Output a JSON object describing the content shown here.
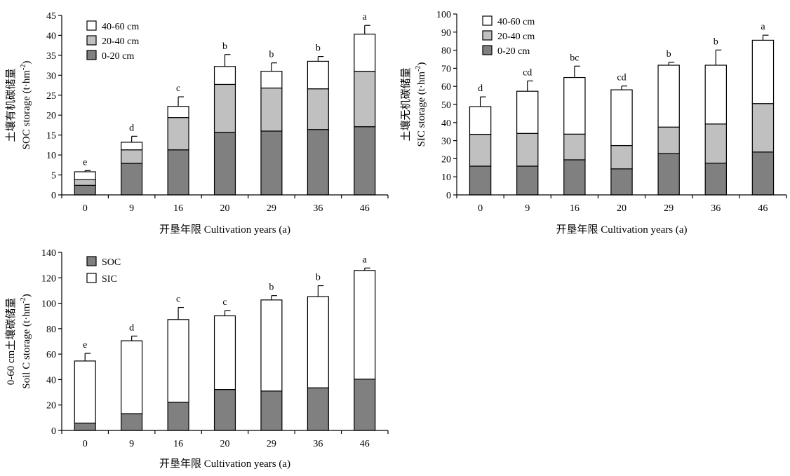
{
  "x_axis_title": "开垦年限 Cultivation years (a)",
  "colors": {
    "layer_0_20": "#808080",
    "layer_20_40": "#c0c0c0",
    "layer_40_60": "#ffffff",
    "soc": "#808080",
    "sic": "#ffffff",
    "stroke": "#000000"
  },
  "chart_data": [
    {
      "type": "bar",
      "stacked": true,
      "categories": [
        "0",
        "9",
        "16",
        "20",
        "29",
        "36",
        "46"
      ],
      "ylabel_cn": "土壤有机碳储量",
      "ylabel_en": "SOC storage (t·hm",
      "ylabel_sup": "-2",
      "ylabel_close": ")",
      "xlabel": "开垦年限 Cultivation years (a)",
      "ylim": [
        0,
        45
      ],
      "yticks": [
        0,
        5,
        10,
        15,
        20,
        25,
        30,
        35,
        40,
        45
      ],
      "series": [
        {
          "name": "0-20 cm",
          "color": "#808080",
          "values": [
            2.4,
            7.9,
            11.3,
            15.7,
            16.0,
            16.4,
            17.1
          ]
        },
        {
          "name": "20-40 cm",
          "color": "#c0c0c0",
          "values": [
            1.4,
            3.4,
            8.1,
            12.0,
            10.8,
            10.2,
            13.9
          ]
        },
        {
          "name": "40-60 cm",
          "color": "#ffffff",
          "values": [
            2.0,
            1.9,
            2.8,
            4.5,
            4.2,
            6.9,
            9.3
          ]
        }
      ],
      "error": [
        0.3,
        1.5,
        2.4,
        3.0,
        2.1,
        1.2,
        2.2
      ],
      "significance": [
        "e",
        "d",
        "c",
        "b",
        "b",
        "b",
        "a"
      ],
      "legend": [
        "40-60 cm",
        "20-40 cm",
        "0-20 cm"
      ],
      "legend_position": "top-left"
    },
    {
      "type": "bar",
      "stacked": true,
      "categories": [
        "0",
        "9",
        "16",
        "20",
        "29",
        "36",
        "46"
      ],
      "ylabel_cn": "土壤无机碳储量",
      "ylabel_en": "SIC storage (t·hm",
      "ylabel_sup": "-2",
      "ylabel_close": ")",
      "xlabel": "开垦年限 Cultivation years (a)",
      "ylim": [
        0,
        100
      ],
      "yticks": [
        0,
        10,
        20,
        30,
        40,
        50,
        60,
        70,
        80,
        90,
        100
      ],
      "series": [
        {
          "name": "0-20 cm",
          "color": "#808080",
          "values": [
            15.9,
            15.9,
            19.4,
            14.4,
            22.9,
            17.5,
            23.7
          ]
        },
        {
          "name": "20-40 cm",
          "color": "#c0c0c0",
          "values": [
            17.6,
            18.1,
            14.2,
            12.9,
            14.6,
            21.7,
            26.8
          ]
        },
        {
          "name": "40-60 cm",
          "color": "#ffffff",
          "values": [
            15.3,
            23.3,
            31.3,
            30.8,
            34.2,
            32.5,
            35.0
          ]
        }
      ],
      "error": [
        5.4,
        5.7,
        6.3,
        2.1,
        1.6,
        8.4,
        2.8
      ],
      "significance": [
        "d",
        "cd",
        "bc",
        "cd",
        "b",
        "b",
        "a"
      ],
      "legend": [
        "40-60 cm",
        "20-40 cm",
        "0-20 cm"
      ],
      "legend_position": "top-left"
    },
    {
      "type": "bar",
      "stacked": true,
      "categories": [
        "0",
        "9",
        "16",
        "20",
        "29",
        "36",
        "46"
      ],
      "ylabel_cn": "0-60 cm土壤碳储量",
      "ylabel_en": "Soil C storage (t·hm",
      "ylabel_sup": "-2",
      "ylabel_close": ")",
      "xlabel": "开垦年限 Cultivation years (a)",
      "ylim": [
        0,
        140
      ],
      "yticks": [
        0,
        20,
        40,
        60,
        80,
        100,
        120,
        140
      ],
      "series": [
        {
          "name": "SOC",
          "color": "#808080",
          "values": [
            5.8,
            13.2,
            22.2,
            32.2,
            31.0,
            33.5,
            40.3
          ]
        },
        {
          "name": "SIC",
          "color": "#ffffff",
          "values": [
            48.8,
            57.3,
            65.0,
            57.9,
            71.6,
            71.7,
            85.5
          ]
        }
      ],
      "error": [
        6.0,
        3.7,
        9.5,
        4.2,
        3.4,
        8.6,
        1.9
      ],
      "significance": [
        "e",
        "d",
        "c",
        "c",
        "b",
        "b",
        "a"
      ],
      "legend": [
        "SOC",
        "SIC"
      ],
      "legend_position": "top-left"
    }
  ]
}
